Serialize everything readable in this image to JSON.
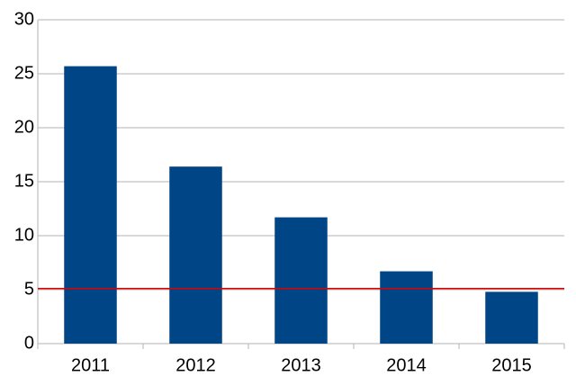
{
  "chart_data": {
    "type": "bar",
    "categories": [
      "2011",
      "2012",
      "2013",
      "2014",
      "2015"
    ],
    "values": [
      25.7,
      16.4,
      11.7,
      6.7,
      4.8
    ],
    "color": "#004586",
    "ylim": [
      0,
      30
    ],
    "yticks": [
      0,
      5,
      10,
      15,
      20,
      25,
      30
    ],
    "grid": true,
    "reference_line": {
      "value": 5.1,
      "color": "#e00000"
    }
  }
}
